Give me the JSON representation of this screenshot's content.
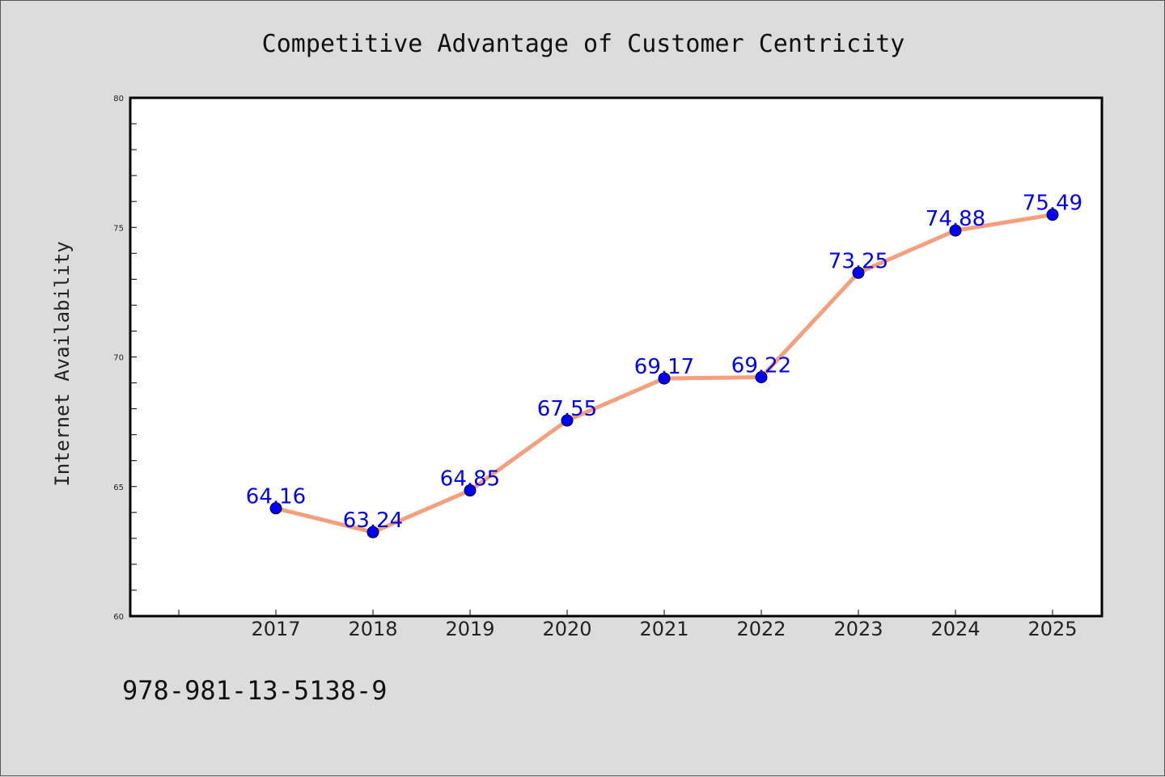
{
  "chart_data": {
    "type": "line",
    "title": "Competitive Advantage of Customer Centricity",
    "xlabel": "",
    "ylabel": "Internet Availability",
    "categories": [
      "2017",
      "2018",
      "2019",
      "2020",
      "2021",
      "2022",
      "2023",
      "2024",
      "2025"
    ],
    "series": [
      {
        "values": [
          64.16,
          63.24,
          64.85,
          67.55,
          69.17,
          69.22,
          73.25,
          74.88,
          75.49
        ]
      }
    ],
    "data_labels": [
      "64.16",
      "63.24",
      "64.85",
      "67.55",
      "69.17",
      "69.22",
      "73.25",
      "74.88",
      "75.49"
    ],
    "ylim": [
      60,
      80
    ],
    "yticks": [
      "60",
      "65",
      "70",
      "75",
      "80"
    ],
    "grid": false,
    "line_color": "#f4a07f",
    "marker_color": "#0000ff",
    "label_color": "#0000ee"
  },
  "footnote": "978-981-13-5138-9"
}
